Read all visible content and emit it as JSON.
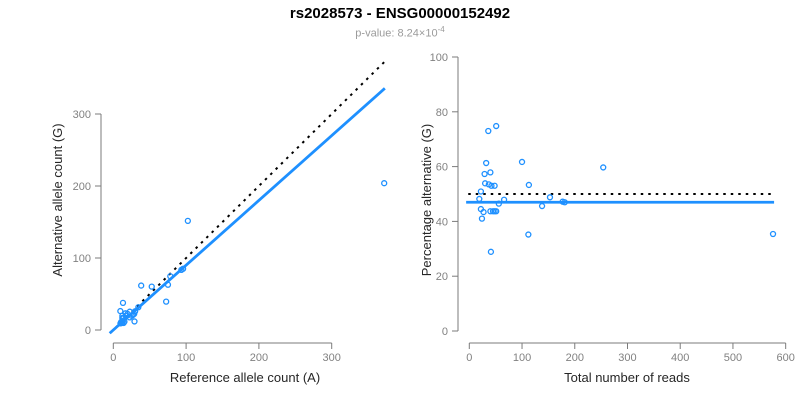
{
  "header": {
    "title": "rs2028573 - ENSG00000152492",
    "subtitle_prefix": "p-value: ",
    "pvalue_base": "8.24×10",
    "pvalue_exp": "-4"
  },
  "colors": {
    "points": "#1E90FF",
    "solid_line": "#1E90FF",
    "dotted_line": "#000000",
    "axis": "#7b7b7b",
    "tick_label": "#818181",
    "axis_title": "#262626",
    "title": "#000000",
    "subtitle": "#9b9b9b"
  },
  "chart_data": [
    {
      "type": "scatter",
      "name": "allele-counts",
      "xlabel": "Reference allele count (A)",
      "ylabel": "Alternative allele count (G)",
      "xlim": [
        0,
        300
      ],
      "ylim": [
        0,
        300
      ],
      "xticks": [
        0,
        100,
        200,
        300
      ],
      "yticks": [
        0,
        100,
        200,
        300
      ],
      "grid": false,
      "legend": "none",
      "points": [
        [
          9.7,
          26.3
        ],
        [
          13.3,
          37.7
        ],
        [
          10.8,
          11.2
        ],
        [
          12.4,
          19.6
        ],
        [
          12.4,
          16.6
        ],
        [
          16.8,
          23.2
        ],
        [
          13.8,
          16.2
        ],
        [
          17.2,
          19.8
        ],
        [
          19.7,
          22.3
        ],
        [
          22.6,
          25.4
        ],
        [
          9.8,
          9.2
        ],
        [
          12.2,
          9.8
        ],
        [
          15.3,
          11.7
        ],
        [
          14.2,
          9.8
        ],
        [
          22.5,
          17.5
        ],
        [
          25.3,
          19.7
        ],
        [
          27.0,
          21.0
        ],
        [
          28.7,
          22.3
        ],
        [
          29.1,
          11.9
        ],
        [
          30.0,
          26.0
        ],
        [
          34.4,
          31.6
        ],
        [
          38.3,
          61.7
        ],
        [
          52.8,
          60.2
        ],
        [
          72.6,
          39.4
        ],
        [
          75.1,
          62.9
        ],
        [
          78.3,
          74.7
        ],
        [
          93.5,
          83.5
        ],
        [
          95.9,
          85.1
        ],
        [
          102.4,
          151.6
        ],
        [
          372.1,
          203.9
        ]
      ],
      "lines": [
        {
          "name": "identity-line",
          "style": "dotted",
          "slope": 1,
          "intercept": 0,
          "x_range": [
            -4,
            375
          ]
        },
        {
          "name": "regression-line",
          "style": "solid",
          "slope": 0.9,
          "intercept": 0,
          "x_range": [
            -5,
            373
          ]
        }
      ]
    },
    {
      "type": "scatter",
      "name": "percentage-vs-reads",
      "xlabel": "Total number of reads",
      "ylabel": "Percentage alternative (G)",
      "xlim": [
        0,
        600
      ],
      "ylim": [
        0,
        100
      ],
      "xticks": [
        0,
        100,
        200,
        300,
        400,
        500,
        600
      ],
      "yticks": [
        0,
        20,
        40,
        60,
        80,
        100
      ],
      "grid": false,
      "legend": "none",
      "points": [
        [
          36,
          73.0
        ],
        [
          51,
          74.8
        ],
        [
          22,
          50.9
        ],
        [
          32,
          61.3
        ],
        [
          29,
          57.3
        ],
        [
          40,
          57.9
        ],
        [
          30,
          53.9
        ],
        [
          37,
          53.5
        ],
        [
          42,
          53.0
        ],
        [
          48,
          53.0
        ],
        [
          19,
          48.2
        ],
        [
          22,
          44.5
        ],
        [
          27,
          43.4
        ],
        [
          24,
          41.0
        ],
        [
          40,
          43.7
        ],
        [
          45,
          43.7
        ],
        [
          48,
          43.7
        ],
        [
          51,
          43.7
        ],
        [
          41,
          28.9
        ],
        [
          56,
          46.5
        ],
        [
          66,
          47.9
        ],
        [
          100,
          61.7
        ],
        [
          113,
          53.3
        ],
        [
          112,
          35.2
        ],
        [
          138,
          45.6
        ],
        [
          153,
          48.8
        ],
        [
          177,
          47.2
        ],
        [
          181,
          47.0
        ],
        [
          254,
          59.7
        ],
        [
          576,
          35.4
        ]
      ],
      "lines": [
        {
          "name": "expected-50-line",
          "style": "dotted",
          "value": 50,
          "x_range": [
            -2,
            578
          ]
        },
        {
          "name": "mean-percentage-line",
          "style": "solid",
          "value": 47,
          "x_range": [
            -6,
            578
          ]
        }
      ]
    }
  ]
}
